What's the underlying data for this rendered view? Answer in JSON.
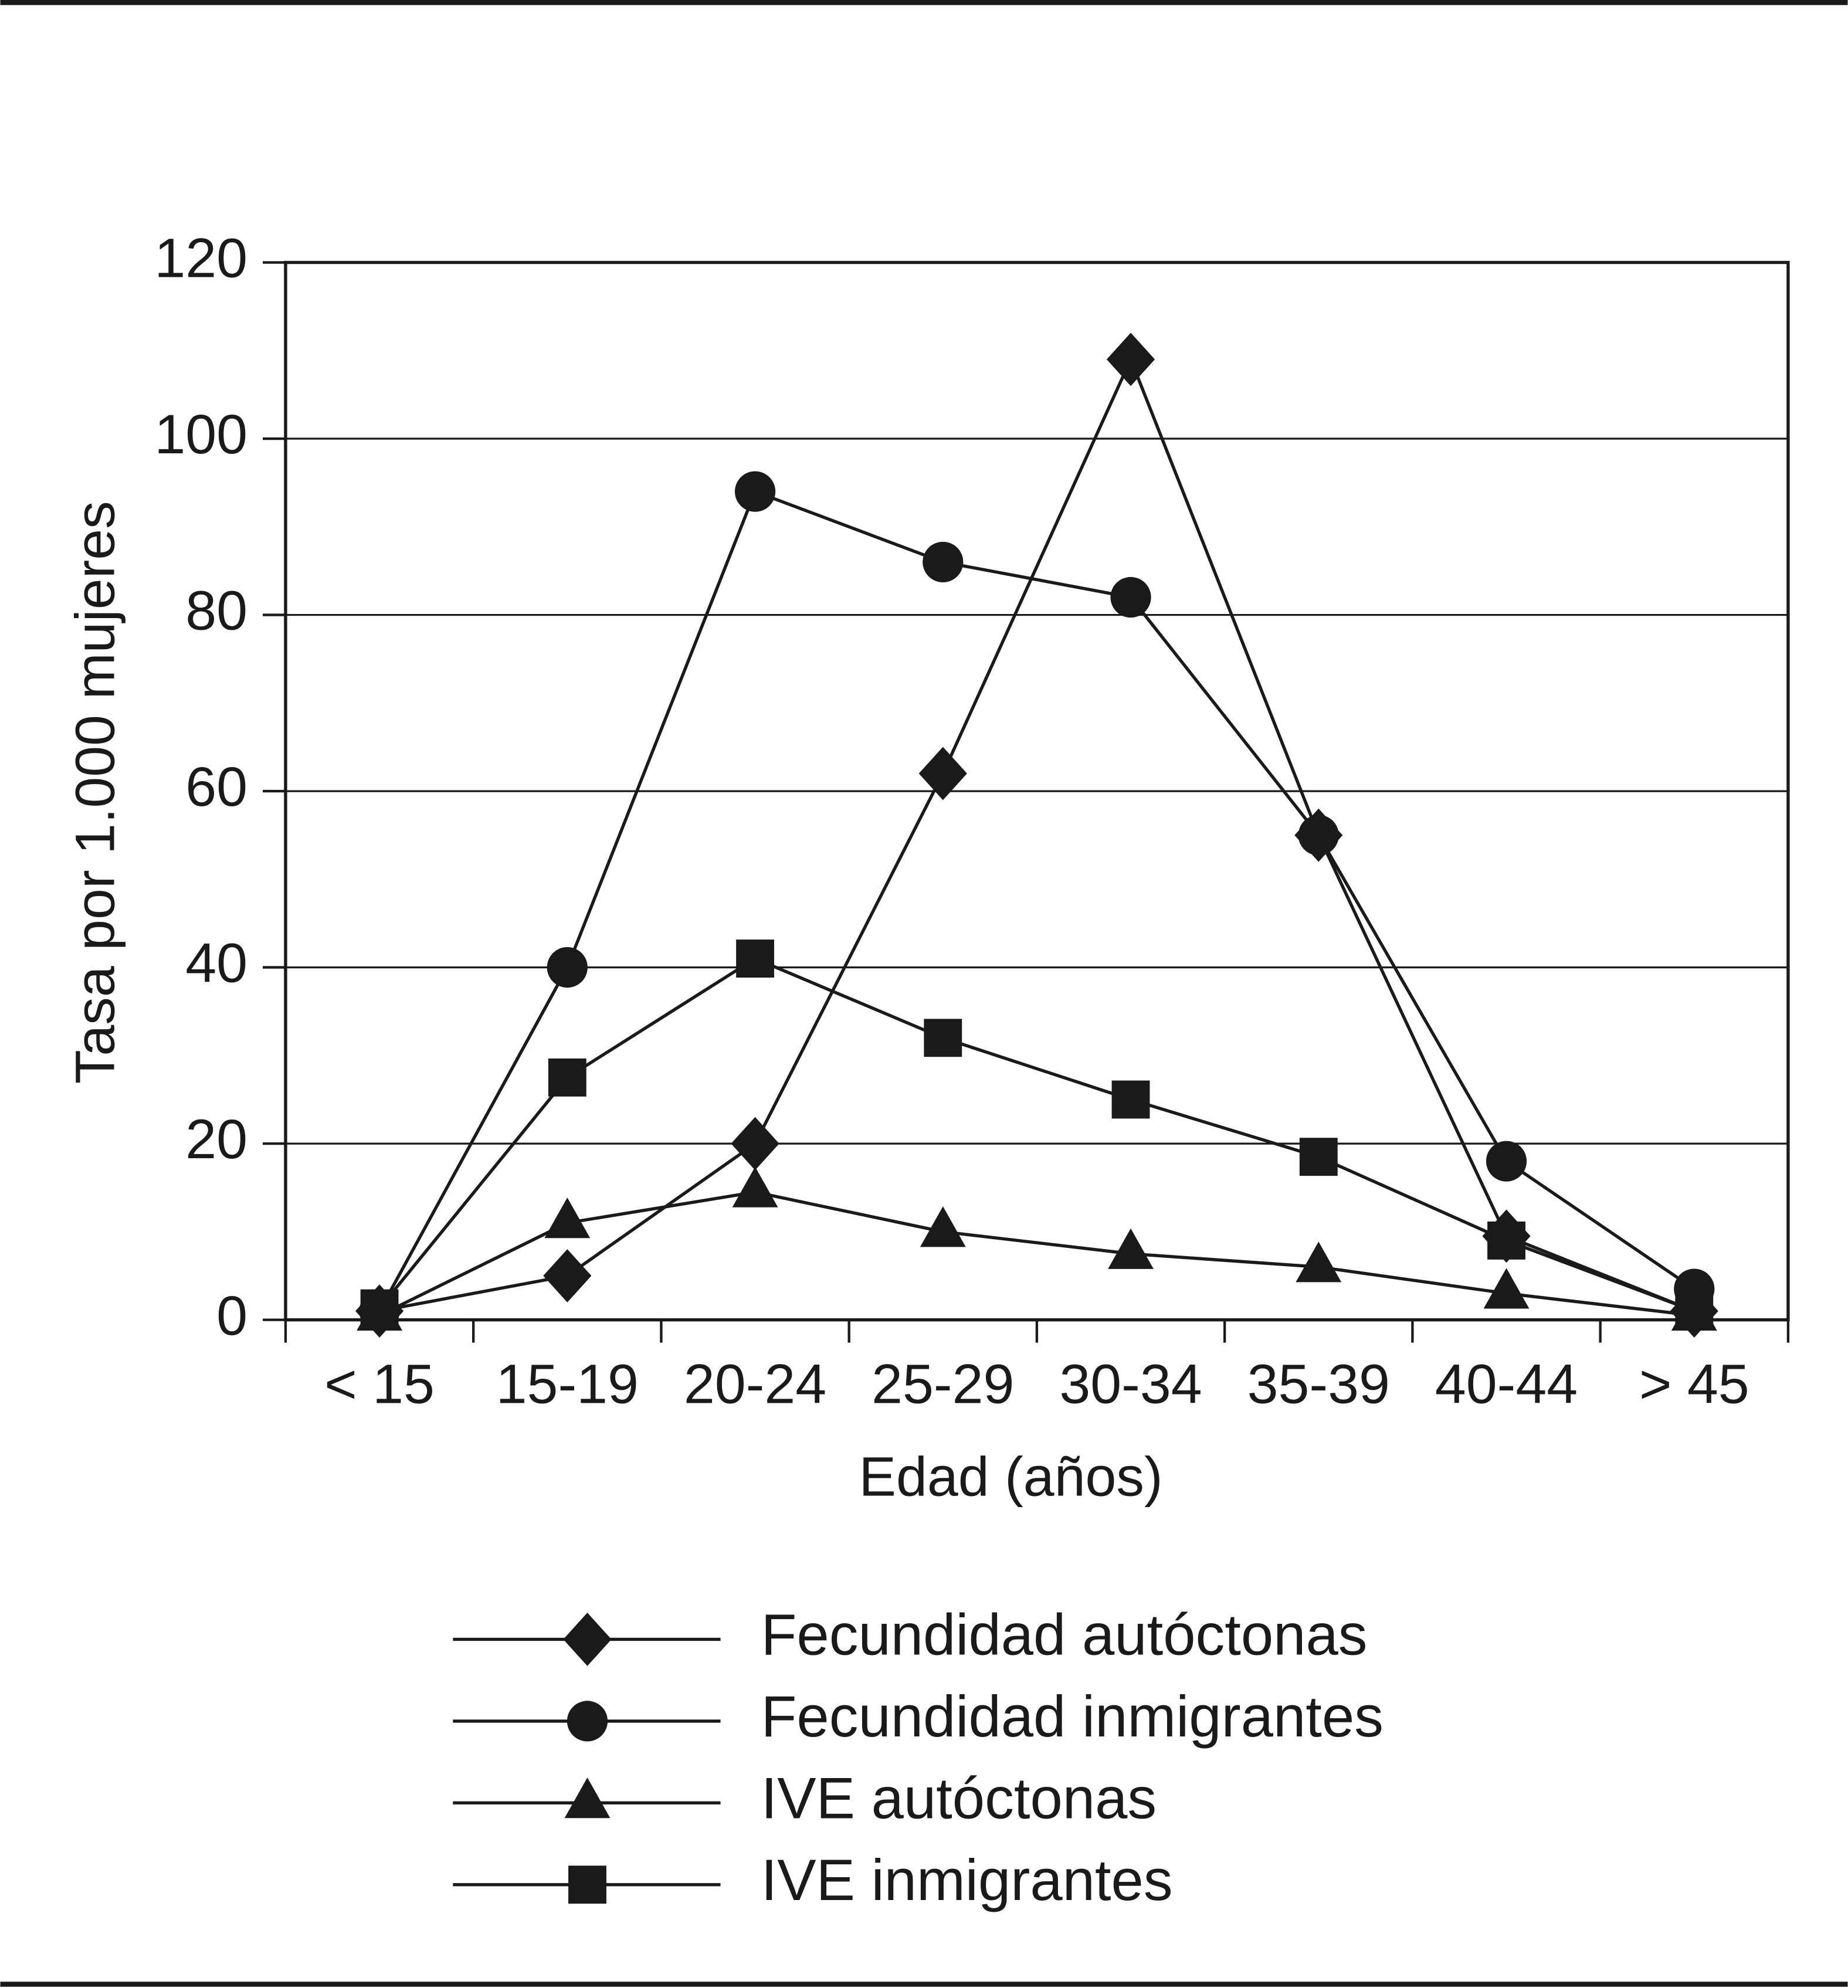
{
  "chart_data": {
    "type": "line",
    "x_label": "Edad (años)",
    "y_label": "Tasa por 1.000 mujeres",
    "categories": [
      "< 15",
      "15-19",
      "20-24",
      "25-29",
      "30-34",
      "35-39",
      "40-44",
      "> 45"
    ],
    "series": [
      {
        "name": "Fecundidad autóctonas",
        "color": "#1a1a1a",
        "marker": "diamond",
        "values": [
          1,
          5,
          20,
          62,
          109,
          55,
          9.5,
          1
        ]
      },
      {
        "name": "Fecundidad inmigrantes",
        "color": "#1a1a1a",
        "marker": "circle",
        "values": [
          1,
          40,
          94,
          86,
          82,
          55,
          18,
          3.5
        ]
      },
      {
        "name": "IVE autóctonas",
        "color": "#1a1a1a",
        "marker": "triangle",
        "values": [
          0.5,
          11,
          14.5,
          10,
          7.5,
          6,
          3,
          0.5
        ]
      },
      {
        "name": "IVE inmigrantes",
        "color": "#1a1a1a",
        "marker": "square",
        "values": [
          1.3,
          27.5,
          41,
          32,
          25,
          18.5,
          9,
          1
        ]
      }
    ],
    "ylim": [
      0,
      120
    ],
    "yticks": [
      0,
      20,
      40,
      60,
      80,
      100,
      120
    ],
    "grid": true,
    "legend": "bottom"
  }
}
